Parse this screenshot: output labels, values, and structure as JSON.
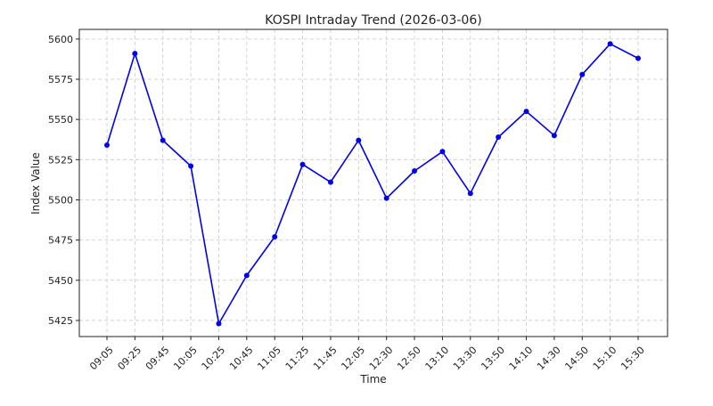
{
  "chart_data": {
    "type": "line",
    "title": "KOSPI Intraday Trend (2026-03-06)",
    "xlabel": "Time",
    "ylabel": "Index Value",
    "categories": [
      "09:05",
      "09:25",
      "09:45",
      "10:05",
      "10:25",
      "10:45",
      "11:05",
      "11:25",
      "11:45",
      "12:05",
      "12:30",
      "12:50",
      "13:10",
      "13:30",
      "13:50",
      "14:10",
      "14:30",
      "14:50",
      "15:10",
      "15:30"
    ],
    "series": [
      {
        "values": [
          5534,
          5591,
          5537,
          5521,
          5423,
          5453,
          5477,
          5522,
          5511,
          5537,
          5501,
          5518,
          5530,
          5504,
          5539,
          5555,
          5540,
          5578,
          5597,
          5588
        ]
      }
    ],
    "ylim": [
      5415,
      5606
    ],
    "yticks": [
      5425,
      5450,
      5475,
      5500,
      5525,
      5550,
      5575,
      5600
    ],
    "grid": true,
    "line_color": "#0000ee",
    "grid_color": "#c8c8c8"
  }
}
